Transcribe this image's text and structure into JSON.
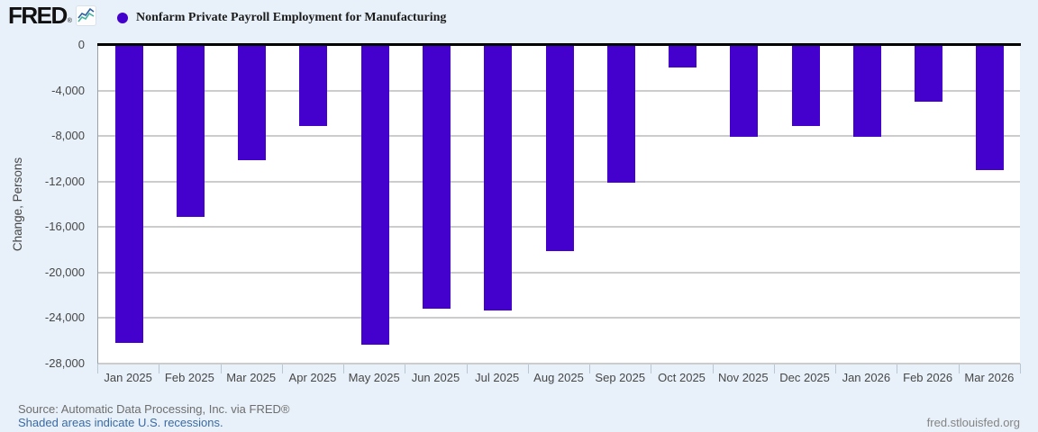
{
  "header": {
    "logo_text": "FRED",
    "logo_registered": "®",
    "legend_label": "Nonfarm Private Payroll Employment for Manufacturing"
  },
  "chart_data": {
    "type": "bar",
    "title": "Nonfarm Private Payroll Employment for Manufacturing",
    "categories": [
      "Jan 2025",
      "Feb 2025",
      "Mar 2025",
      "Apr 2025",
      "May 2025",
      "Jun 2025",
      "Jul 2025",
      "Aug 2025",
      "Sep 2025",
      "Oct 2025",
      "Nov 2025",
      "Dec 2025",
      "Jan 2026",
      "Feb 2026",
      "Mar 2026"
    ],
    "values": [
      -26200,
      -15100,
      -10100,
      -7100,
      -26300,
      -23200,
      -23300,
      -18100,
      -12100,
      -2000,
      -8100,
      -7100,
      -8100,
      -5000,
      -11000
    ],
    "xlabel": "",
    "ylabel": "Change, Persons",
    "ylim": [
      -28000,
      0
    ],
    "ytick_interval": 4000,
    "ytick_labels": [
      "0",
      "-4,000",
      "-8,000",
      "-12,000",
      "-16,000",
      "-20,000",
      "-24,000",
      "-28,000"
    ],
    "grid": true,
    "legend_position": "top",
    "bar_color": "#4400cc",
    "zero_line_color": "#000000",
    "gridline_color": "#cccccc",
    "plot_background": "#ffffff",
    "page_background": "#e8f1f9"
  },
  "footer": {
    "source": "Source: Automatic Data Processing, Inc. via FRED®",
    "recessions_note": "Shaded areas indicate U.S. recessions.",
    "site": "fred.stlouisfed.org"
  },
  "colors": {
    "series_purple": "#4400cc",
    "axis_text": "#474747",
    "link_blue": "#3a6aa5",
    "source_gray": "#6e6e6e"
  }
}
